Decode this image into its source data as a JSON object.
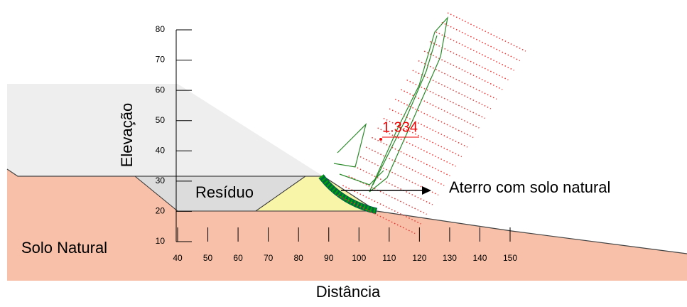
{
  "chart_data": {
    "type": "slope-stability",
    "x_label": "Distância",
    "y_label": "Elevação",
    "factor_of_safety": "1.334",
    "annotations": [
      "Resíduo",
      "Aterro com solo natural",
      "Solo Natural"
    ],
    "xlim": [
      40,
      150
    ],
    "xticks": [
      40,
      50,
      60,
      70,
      80,
      90,
      100,
      110,
      120,
      130,
      140,
      150
    ],
    "ylim": [
      10,
      80
    ],
    "yticks": [
      10,
      20,
      30,
      40,
      50,
      60,
      70,
      80
    ]
  }
}
